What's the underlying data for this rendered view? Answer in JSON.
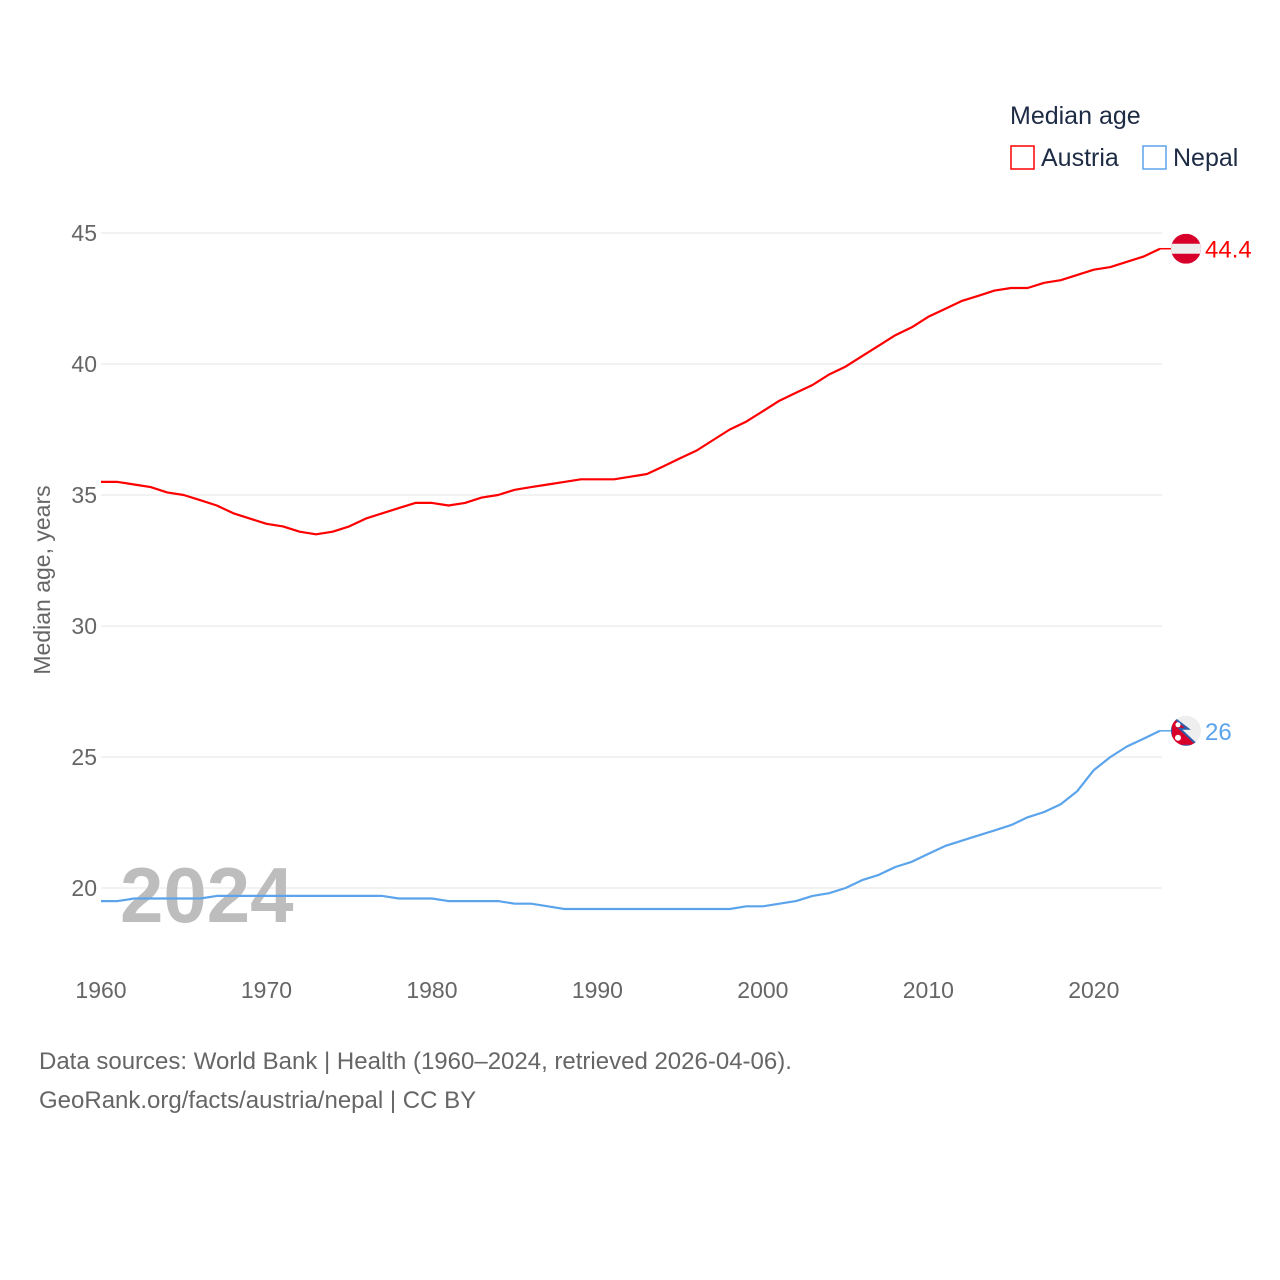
{
  "chart_data": {
    "type": "line",
    "ylabel": "Median age, years",
    "legend": {
      "title": "Median age",
      "placement": "top-right"
    },
    "year_watermark": "2024",
    "xlim": [
      1960,
      2024
    ],
    "ylim": [
      18,
      46.5
    ],
    "xticks": [
      1960,
      1970,
      1980,
      1990,
      2000,
      2010,
      2020
    ],
    "yticks": [
      20,
      25,
      30,
      35,
      40,
      45
    ],
    "grid": true,
    "x": [
      1960,
      1961,
      1962,
      1963,
      1964,
      1965,
      1966,
      1967,
      1968,
      1969,
      1970,
      1971,
      1972,
      1973,
      1974,
      1975,
      1976,
      1977,
      1978,
      1979,
      1980,
      1981,
      1982,
      1983,
      1984,
      1985,
      1986,
      1987,
      1988,
      1989,
      1990,
      1991,
      1992,
      1993,
      1994,
      1995,
      1996,
      1997,
      1998,
      1999,
      2000,
      2001,
      2002,
      2003,
      2004,
      2005,
      2006,
      2007,
      2008,
      2009,
      2010,
      2011,
      2012,
      2013,
      2014,
      2015,
      2016,
      2017,
      2018,
      2019,
      2020,
      2021,
      2022,
      2023,
      2024
    ],
    "series": [
      {
        "name": "Austria",
        "color": "#ff0000",
        "end_label": "44.4",
        "values": [
          35.5,
          35.5,
          35.4,
          35.3,
          35.1,
          35.0,
          34.8,
          34.6,
          34.3,
          34.1,
          33.9,
          33.8,
          33.6,
          33.5,
          33.6,
          33.8,
          34.1,
          34.3,
          34.5,
          34.7,
          34.7,
          34.6,
          34.7,
          34.9,
          35.0,
          35.2,
          35.3,
          35.4,
          35.5,
          35.6,
          35.6,
          35.6,
          35.7,
          35.8,
          36.1,
          36.4,
          36.7,
          37.1,
          37.5,
          37.8,
          38.2,
          38.6,
          38.9,
          39.2,
          39.6,
          39.9,
          40.3,
          40.7,
          41.1,
          41.4,
          41.8,
          42.1,
          42.4,
          42.6,
          42.8,
          42.9,
          42.9,
          43.1,
          43.2,
          43.4,
          43.6,
          43.7,
          43.9,
          44.1,
          44.4
        ]
      },
      {
        "name": "Nepal",
        "color": "#5ba4ec",
        "end_label": "26",
        "values": [
          19.5,
          19.5,
          19.6,
          19.6,
          19.6,
          19.6,
          19.6,
          19.7,
          19.7,
          19.7,
          19.7,
          19.7,
          19.7,
          19.7,
          19.7,
          19.7,
          19.7,
          19.7,
          19.6,
          19.6,
          19.6,
          19.5,
          19.5,
          19.5,
          19.5,
          19.4,
          19.4,
          19.3,
          19.2,
          19.2,
          19.2,
          19.2,
          19.2,
          19.2,
          19.2,
          19.2,
          19.2,
          19.2,
          19.2,
          19.3,
          19.3,
          19.4,
          19.5,
          19.7,
          19.8,
          20.0,
          20.3,
          20.5,
          20.8,
          21.0,
          21.3,
          21.6,
          21.8,
          22.0,
          22.2,
          22.4,
          22.7,
          22.9,
          23.2,
          23.7,
          24.5,
          25.0,
          25.4,
          25.7,
          26.0
        ]
      }
    ]
  },
  "source": {
    "line1": "Data sources: World Bank | Health (1960–2024, retrieved 2026-04-06).",
    "line2": "GeoRank.org/facts/austria/nepal | CC BY"
  }
}
